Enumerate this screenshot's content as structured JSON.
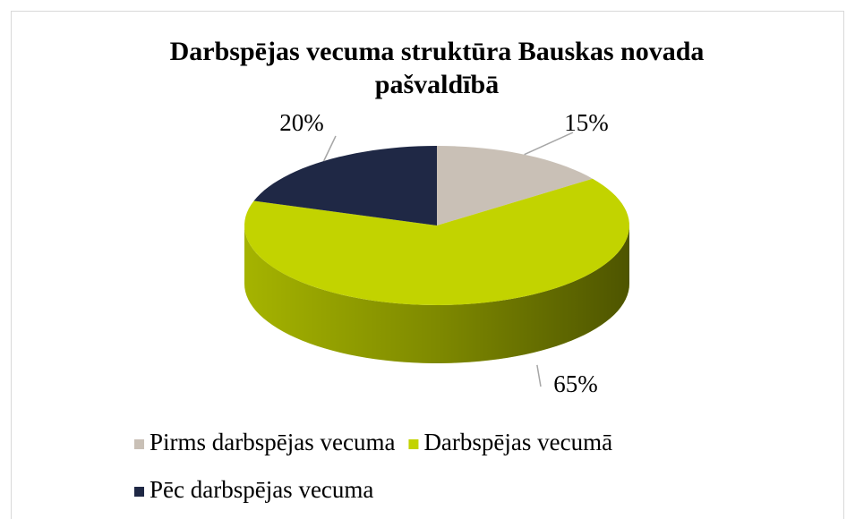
{
  "chart_data": {
    "type": "pie",
    "title": "Darbspējas vecuma struktūra Bauskas novada pašvaldībā",
    "categories": [
      "Pirms darbspējas vecuma",
      "Darbspējas vecumā",
      "Pēc darbspējas vecuma"
    ],
    "values": [
      15,
      65,
      20
    ],
    "value_labels": [
      "15%",
      "65%",
      "20%"
    ],
    "colors": [
      "#c9c0b6",
      "#c2d300",
      "#1f2845"
    ],
    "legend": "bottom"
  }
}
